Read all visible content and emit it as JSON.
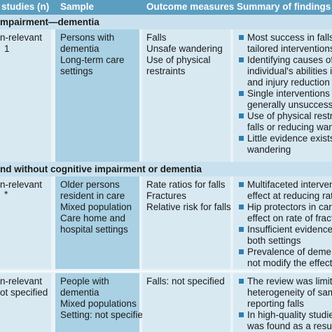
{
  "header": {
    "col1": "studies (n)",
    "col2": "Sample",
    "col3": "Outcome measures",
    "col4": "Summary of findings"
  },
  "sections": [
    {
      "title": "mpairment—dementia"
    },
    {
      "title": "nd without cognitive impairment or dementia"
    }
  ],
  "rows": [
    {
      "study": [
        "n-relevant",
        "1"
      ],
      "sample": [
        "Persons with",
        "dementia",
        "Long-term care",
        "settings"
      ],
      "outcomes": [
        "Falls",
        "Unsafe wandering",
        "Use of physical",
        "restraints"
      ],
      "findings": [
        [
          "Most success in falls p",
          "tailored interventions"
        ],
        [
          "Identifying causes of f",
          "individual's abilities in",
          "and injury reduction r"
        ],
        [
          "Single interventions or",
          "generally unsuccessful"
        ],
        [
          "Use of physical restrai",
          "falls or reducing wanc"
        ],
        [
          "Little evidence exists c",
          "wandering"
        ]
      ]
    },
    {
      "study": [
        "n-relevant",
        "*"
      ],
      "sample": [
        "Older persons",
        "resident in care",
        "Mixed population",
        "Care home and",
        "hospital settings"
      ],
      "outcomes": [
        "Rate ratios for falls",
        "Fractures",
        "Relative risk for falls"
      ],
      "findings": [
        [
          "Multifaceted intervent",
          "effect at reducing rate"
        ],
        [
          "Hip protectors in care",
          "effect on rate of fractu"
        ],
        [
          "Insufficient evidence f",
          "both settings"
        ],
        [
          "Prevalence of dementi",
          "not modify the effect"
        ]
      ]
    },
    {
      "study": [
        "n-relevant",
        "ot specified"
      ],
      "sample": [
        "People with",
        "dementia",
        "Mixed populations",
        "Setting: not specified"
      ],
      "outcomes": [
        "Falls: not specified"
      ],
      "findings": [
        [
          "The review was limited",
          "heterogeneity of samp",
          "reporting falls"
        ],
        [
          "In high-quality studies",
          "was found as a result"
        ]
      ]
    }
  ]
}
